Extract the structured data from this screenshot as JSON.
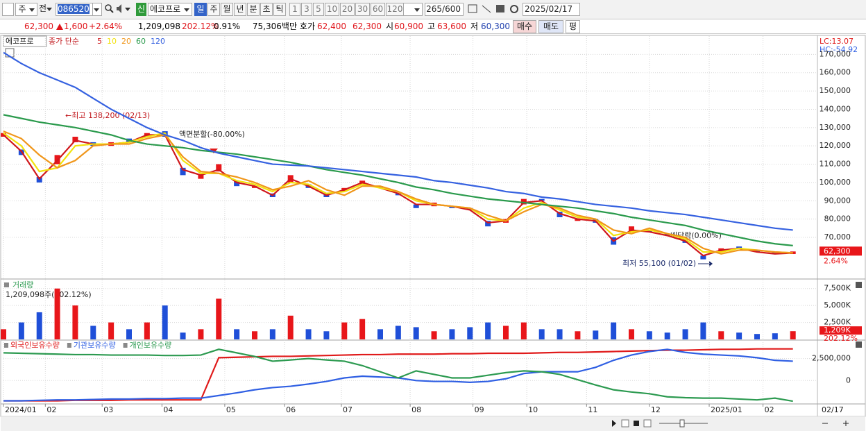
{
  "toolbar": {
    "market": "주",
    "prev": "전",
    "code": "086520",
    "name": "에코프로",
    "periods": [
      "일",
      "주",
      "월",
      "년",
      "분",
      "초",
      "틱"
    ],
    "intervals": [
      "1",
      "3",
      "5",
      "10",
      "20",
      "30",
      "60",
      "120"
    ],
    "count": "265/600",
    "date": "2025/02/17"
  },
  "quote": {
    "price": "62,300",
    "change": "1,600",
    "change_pct": "+2.64%",
    "volume": "1,209,098",
    "volume_ratio": "202.12%",
    "turnover": "0.91%",
    "amount": "75,306백만",
    "ask_label": "호가",
    "ask": "62,400",
    "bid": "62,300",
    "open_label": "시",
    "open": "60,900",
    "high_label": "고",
    "high": "63,600",
    "low_label": "저",
    "low": "60,300",
    "buy": "매수",
    "sell": "매도",
    "avg": "평"
  },
  "chart_data": [
    {
      "type": "candlestick",
      "title": "에코프로",
      "legend_title": "종가 단순",
      "x": [
        0,
        6,
        12,
        18,
        24,
        30,
        36,
        42,
        48,
        54,
        60,
        66,
        72,
        78,
        84,
        90,
        96,
        102,
        108,
        114,
        120,
        126,
        132,
        138,
        144,
        150,
        156,
        162,
        168,
        174,
        180,
        186,
        192,
        198,
        204,
        210,
        216,
        222,
        228,
        234,
        240,
        246,
        252,
        258,
        264
      ],
      "xlim": [
        0,
        265
      ],
      "xticks": [
        {
          "value": 0,
          "label": "2024/01"
        },
        {
          "value": 14,
          "label": "02"
        },
        {
          "value": 33,
          "label": "03"
        },
        {
          "value": 53,
          "label": "04"
        },
        {
          "value": 74,
          "label": "05"
        },
        {
          "value": 94,
          "label": "06"
        },
        {
          "value": 113,
          "label": "07"
        },
        {
          "value": 136,
          "label": "08"
        },
        {
          "value": 157,
          "label": "09"
        },
        {
          "value": 175,
          "label": "10"
        },
        {
          "value": 195,
          "label": "11"
        },
        {
          "value": 216,
          "label": "12"
        },
        {
          "value": 236,
          "label": "2025/01"
        },
        {
          "value": 254,
          "label": "02"
        }
      ],
      "x_end_label": "02/17",
      "open": [
        125000,
        118000,
        103000,
        110000,
        122000,
        122000,
        120000,
        124000,
        125000,
        128000,
        108000,
        102000,
        106000,
        101000,
        97000,
        94000,
        100000,
        99000,
        94000,
        95000,
        99000,
        98000,
        94000,
        88000,
        87000,
        87000,
        86000,
        79000,
        78000,
        88000,
        91000,
        84000,
        79000,
        80000,
        70000,
        73000,
        74000,
        72000,
        69000,
        60000,
        62000,
        65000,
        63000,
        62000,
        60900
      ],
      "close": [
        127000,
        115000,
        100000,
        115000,
        125000,
        120000,
        122000,
        122000,
        127000,
        125000,
        104000,
        104000,
        110000,
        98000,
        98000,
        92000,
        104000,
        97000,
        92000,
        97000,
        101000,
        97000,
        93000,
        86000,
        89000,
        86000,
        85000,
        76000,
        80000,
        91000,
        90000,
        81000,
        80000,
        78000,
        66000,
        76000,
        73000,
        71000,
        67000,
        58000,
        64000,
        64000,
        62000,
        61000,
        62300
      ],
      "up_color": "#e8161a",
      "down_color": "#1f4fd8",
      "series": [
        {
          "name": "5",
          "color": "#d0181c",
          "values": [
            126000,
            117000,
            102000,
            112000,
            123000,
            121000,
            121000,
            122000,
            126000,
            126000,
            107000,
            104000,
            107000,
            100000,
            98000,
            93000,
            102000,
            98000,
            93000,
            96000,
            100000,
            97000,
            94000,
            88000,
            88000,
            87000,
            85000,
            78000,
            79000,
            89000,
            90000,
            83000,
            80000,
            79000,
            68000,
            74000,
            73000,
            71000,
            68000,
            60000,
            63000,
            64000,
            62000,
            61000,
            61500
          ]
        },
        {
          "name": "10",
          "color": "#f2e20c",
          "values": [
            127000,
            120000,
            106000,
            108000,
            120000,
            121000,
            121000,
            122000,
            125000,
            127000,
            112000,
            105000,
            105000,
            101000,
            99000,
            95000,
            100000,
            99000,
            94000,
            95000,
            99000,
            97000,
            95000,
            90000,
            88000,
            87000,
            86000,
            80000,
            79000,
            86000,
            89000,
            85000,
            81000,
            80000,
            71000,
            73000,
            74000,
            72000,
            69000,
            62000,
            62000,
            64000,
            63000,
            62000,
            61500
          ]
        },
        {
          "name": "20",
          "color": "#f0961a",
          "values": [
            128000,
            124000,
            115000,
            108000,
            112000,
            120000,
            121000,
            121000,
            124000,
            126000,
            114000,
            106000,
            105000,
            103000,
            100000,
            96000,
            98000,
            101000,
            96000,
            93000,
            98000,
            98000,
            95000,
            91000,
            88000,
            87000,
            86000,
            82000,
            79000,
            84000,
            88000,
            86000,
            82000,
            80000,
            74000,
            72000,
            75000,
            72000,
            70000,
            64000,
            61000,
            63000,
            63000,
            62000,
            61500
          ]
        },
        {
          "name": "60",
          "color": "#2a9a4c",
          "values": [
            137000,
            135000,
            133000,
            131500,
            130000,
            128000,
            126000,
            123000,
            121000,
            120000,
            119000,
            117500,
            116500,
            115500,
            114000,
            112500,
            111000,
            109000,
            107000,
            105500,
            104000,
            102000,
            100000,
            97500,
            96000,
            94000,
            92500,
            91000,
            90000,
            89000,
            88000,
            87000,
            86000,
            84500,
            83000,
            81000,
            79500,
            78000,
            76500,
            74000,
            72000,
            70000,
            68000,
            66500,
            65500
          ]
        },
        {
          "name": "120",
          "color": "#3561e0",
          "values": [
            171000,
            165000,
            160000,
            156000,
            152000,
            146000,
            140000,
            135000,
            130000,
            126000,
            123000,
            119000,
            116000,
            114000,
            112000,
            110000,
            109500,
            109000,
            108000,
            107000,
            106000,
            105000,
            104000,
            103000,
            101000,
            100000,
            98500,
            97000,
            95000,
            94000,
            92000,
            91000,
            89500,
            88000,
            87000,
            86000,
            84500,
            83500,
            82500,
            81000,
            79500,
            78000,
            76500,
            75000,
            74000
          ]
        }
      ],
      "ylim": [
        48000,
        180000
      ],
      "yticks": [
        {
          "value": 70000,
          "label": "70,000"
        },
        {
          "value": 80000,
          "label": "80,000"
        },
        {
          "value": 90000,
          "label": "90,000"
        },
        {
          "value": 100000,
          "label": "100,000"
        },
        {
          "value": 110000,
          "label": "110,000"
        },
        {
          "value": 120000,
          "label": "120,000"
        },
        {
          "value": 130000,
          "label": "130,000"
        },
        {
          "value": 140000,
          "label": "140,000"
        },
        {
          "value": 150000,
          "label": "150,000"
        },
        {
          "value": 160000,
          "label": "160,000"
        },
        {
          "value": 170000,
          "label": "170,000"
        }
      ],
      "grid": true,
      "lc_label": "LC:13.07",
      "hc_label": "HC:-54.92",
      "price_tag": {
        "value": 62300,
        "label": "62,300"
      },
      "price_tag_pct": "2.64%",
      "annotations": [
        "←최고 138,200 (02/13)",
        "액면분할(-80.00%)",
        "배당락(0.00%)",
        "최저 55,100 (01/02)"
      ]
    },
    {
      "type": "bar",
      "title": "거래량",
      "subtitle": "1,209,098주(202.12%)",
      "values": [
        1500000,
        2500000,
        4000000,
        7500000,
        5000000,
        2000000,
        2500000,
        1500000,
        2500000,
        5000000,
        1000000,
        1500000,
        6000000,
        1500000,
        1200000,
        1500000,
        3500000,
        1500000,
        1200000,
        2500000,
        3000000,
        1500000,
        2000000,
        1800000,
        1200000,
        1500000,
        1800000,
        2500000,
        2000000,
        2500000,
        1500000,
        1500000,
        1200000,
        1300000,
        2500000,
        1500000,
        1200000,
        1000000,
        1500000,
        2500000,
        1200000,
        1000000,
        800000,
        900000,
        1209098
      ],
      "ylim": [
        0,
        8700000
      ],
      "yticks": [
        {
          "value": 2500000,
          "label": "2,500K"
        },
        {
          "value": 5000000,
          "label": "5,000K"
        },
        {
          "value": 7500000,
          "label": "7,500K"
        }
      ],
      "tag": {
        "value": 1209098,
        "label": "1,209K"
      },
      "tag_pct": "202.12%"
    },
    {
      "type": "line",
      "series": [
        {
          "name": "외국인보유수량",
          "color": "#e01a1a",
          "values": [
            -2300000,
            -2300000,
            -2300000,
            -2300000,
            -2250000,
            -2250000,
            -2250000,
            -2200000,
            -2200000,
            -2200000,
            -2200000,
            -2200000,
            2600000,
            2650000,
            2700000,
            2750000,
            2750000,
            2800000,
            2850000,
            2900000,
            2950000,
            2950000,
            3000000,
            3000000,
            3000000,
            3050000,
            3050000,
            3100000,
            3100000,
            3100000,
            3150000,
            3200000,
            3200000,
            3250000,
            3300000,
            3350000,
            3400000,
            3450000,
            3450000,
            3500000,
            3550000,
            3550000,
            3600000,
            3600000,
            3600000
          ]
        },
        {
          "name": "기관보유수량",
          "color": "#2f5fe3",
          "values": [
            -2300000,
            -2300000,
            -2250000,
            -2200000,
            -2200000,
            -2150000,
            -2100000,
            -2100000,
            -2050000,
            -2050000,
            -2000000,
            -2000000,
            -1700000,
            -1400000,
            -1050000,
            -800000,
            -650000,
            -400000,
            -100000,
            300000,
            500000,
            400000,
            300000,
            0,
            -100000,
            -100000,
            -200000,
            -100000,
            200000,
            800000,
            1000000,
            1000000,
            1000000,
            1500000,
            2300000,
            2900000,
            3300000,
            3550000,
            3200000,
            3000000,
            2900000,
            2800000,
            2600000,
            2300000,
            2200000
          ]
        },
        {
          "name": "개인보유수량",
          "color": "#2c9a50",
          "values": [
            3150000,
            3100000,
            3050000,
            3000000,
            2950000,
            2950000,
            2900000,
            2900000,
            2900000,
            2850000,
            2850000,
            2900000,
            3550000,
            3150000,
            2740000,
            2200000,
            2340000,
            2500000,
            2340000,
            2200000,
            1700000,
            1000000,
            300000,
            1100000,
            700000,
            300000,
            300000,
            600000,
            900000,
            1100000,
            1000000,
            700000,
            100000,
            -500000,
            -1050000,
            -1300000,
            -1500000,
            -1850000,
            -1950000,
            -2000000,
            -2000000,
            -2100000,
            -2200000,
            -2000000,
            -2350000
          ]
        }
      ],
      "ylim": [
        -2500000,
        4600000
      ],
      "yticks": [
        0,
        {
          "value": 2500000,
          "label": "2,500,000"
        }
      ]
    }
  ]
}
